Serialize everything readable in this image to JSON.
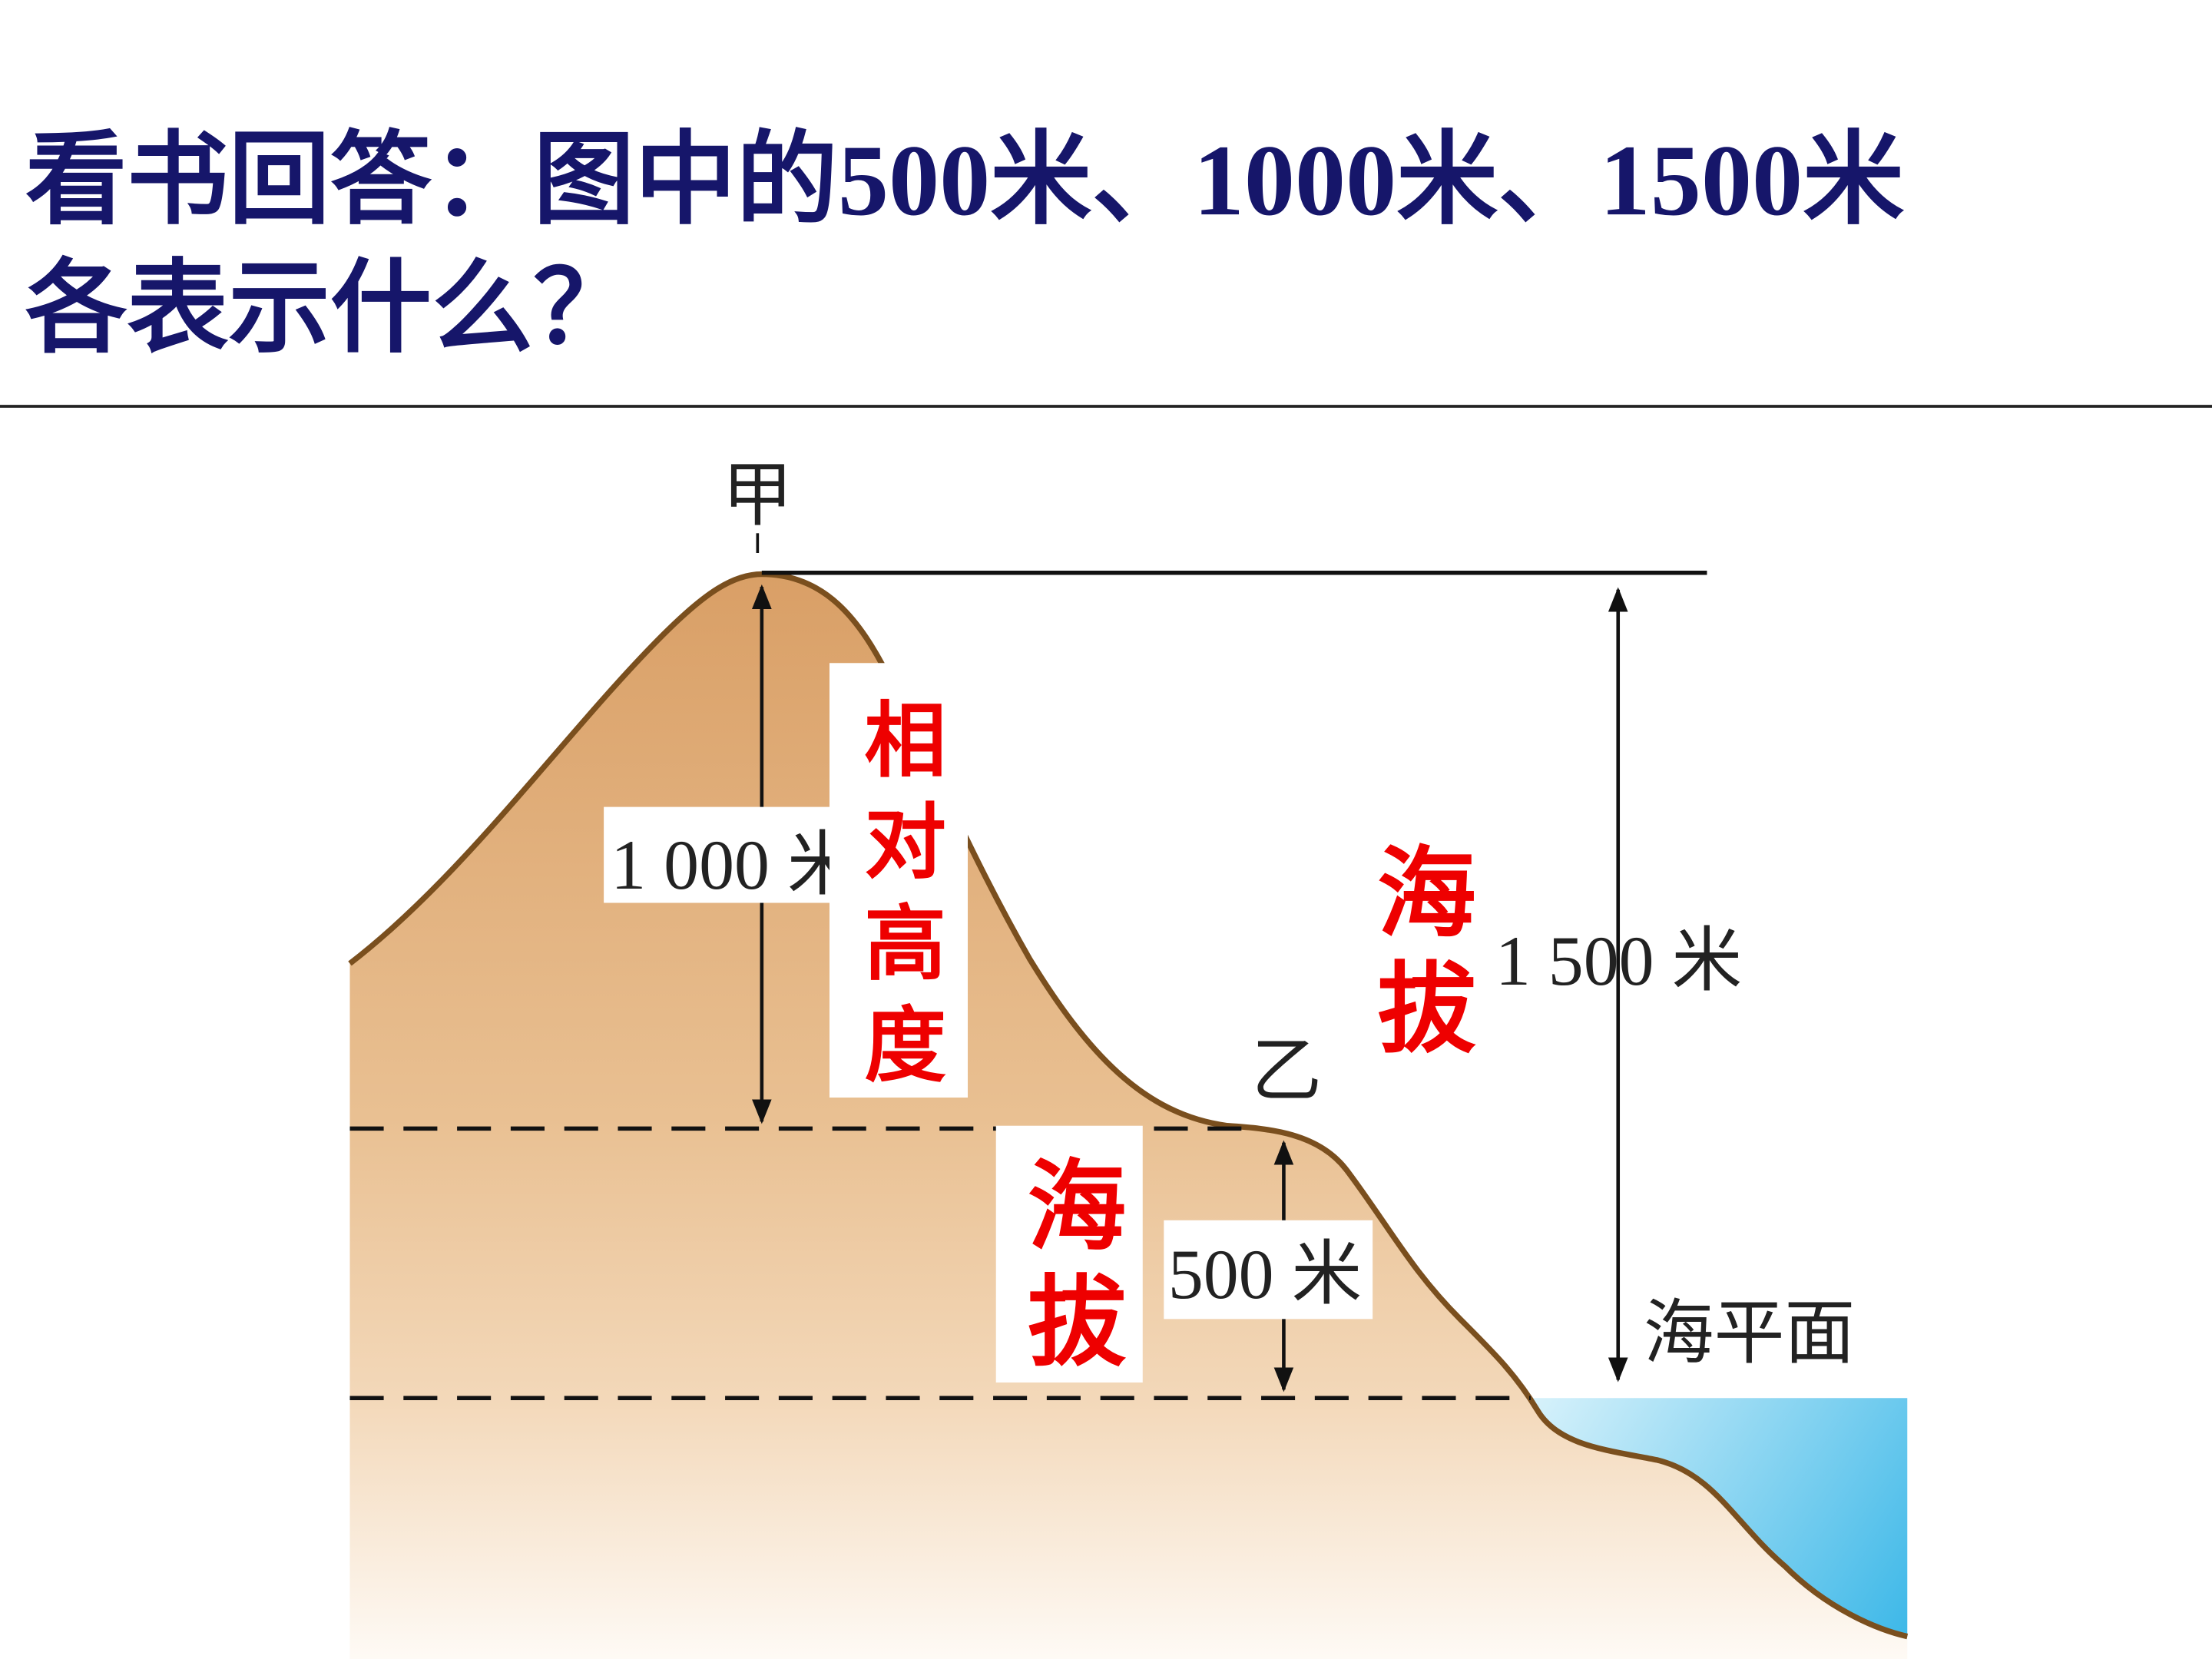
{
  "title_lines": [
    "看书回答：图中的500米、1000米、1500米",
    "各表示什么？"
  ],
  "diagram": {
    "peak_label": "甲",
    "valley_label": "乙",
    "relative_height_label": "1 000 米",
    "peak_elevation_label": "1 500 米",
    "valley_elevation_label": "500 米",
    "sea_level_label": "海平面",
    "annotations": {
      "relative_height": "相对高度",
      "peak_elevation": "海拔",
      "valley_elevation": "海拔"
    }
  }
}
